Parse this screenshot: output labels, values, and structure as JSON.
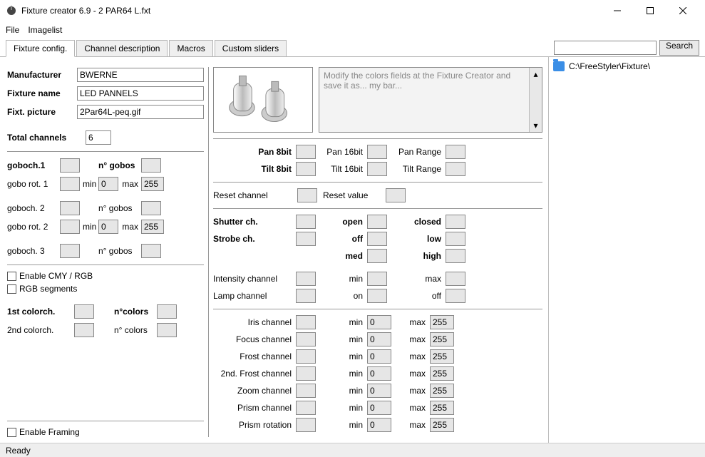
{
  "window": {
    "title": "Fixture creator 6.9 - 2 PAR64 L.fxt"
  },
  "menu": {
    "file": "File",
    "imagelist": "Imagelist"
  },
  "tabs": {
    "fixture_config": "Fixture config.",
    "channel_desc": "Channel description",
    "macros": "Macros",
    "custom_sliders": "Custom sliders",
    "search_btn": "Search"
  },
  "tree": {
    "root": "C:\\FreeStyler\\Fixture\\"
  },
  "status": {
    "text": "Ready"
  },
  "basic": {
    "manufacturer_l": "Manufacturer",
    "manufacturer_v": "BWERNE",
    "name_l": "Fixture name",
    "name_v": "LED PANNELS",
    "picture_l": "Fixt. picture",
    "picture_v": "2Par64L-peq.gif",
    "total_l": "Total channels",
    "total_v": "6"
  },
  "gobo": {
    "g1_l": "goboch.1",
    "ng_l": "n° gobos",
    "rot1_l": "gobo rot. 1",
    "min_l": "min",
    "min_v": "0",
    "max_l": "max",
    "max_v": "255",
    "g2_l": "goboch. 2",
    "rot2_l": "gobo rot. 2",
    "min2_v": "0",
    "max2_v": "255",
    "g3_l": "goboch. 3"
  },
  "chk": {
    "cmy": "Enable CMY / RGB",
    "rgbseg": "RGB segments",
    "framing": "Enable Framing"
  },
  "color": {
    "c1_l": "1st colorch.",
    "nc1_l": "n°colors",
    "c2_l": "2nd colorch.",
    "nc2_l": "n° colors"
  },
  "notes": {
    "text": "Modify the colors fields at the Fixture Creator and save it as... my bar..."
  },
  "pan": {
    "pan8": "Pan 8bit",
    "tilt8": "Tilt 8bit",
    "pan16": "Pan 16bit",
    "tilt16": "Tilt 16bit",
    "panrange": "Pan Range",
    "tiltrange": "Tilt Range"
  },
  "reset": {
    "ch_l": "Reset channel",
    "val_l": "Reset value"
  },
  "shutter": {
    "shutter_l": "Shutter ch.",
    "strobe_l": "Strobe ch.",
    "open": "open",
    "closed": "closed",
    "off": "off",
    "low": "low",
    "med": "med",
    "high": "high"
  },
  "intens": {
    "int_l": "Intensity channel",
    "lamp_l": "Lamp channel",
    "min": "min",
    "max": "max",
    "on": "on",
    "offv": "off"
  },
  "chan": {
    "iris": "Iris channel",
    "focus": "Focus channel",
    "frost": "Frost channel",
    "frost2": "2nd. Frost channel",
    "zoom": "Zoom channel",
    "prism": "Prism channel",
    "prismrot": "Prism rotation",
    "min_l": "min",
    "max_l": "max",
    "min_v": "0",
    "max_v": "255"
  }
}
